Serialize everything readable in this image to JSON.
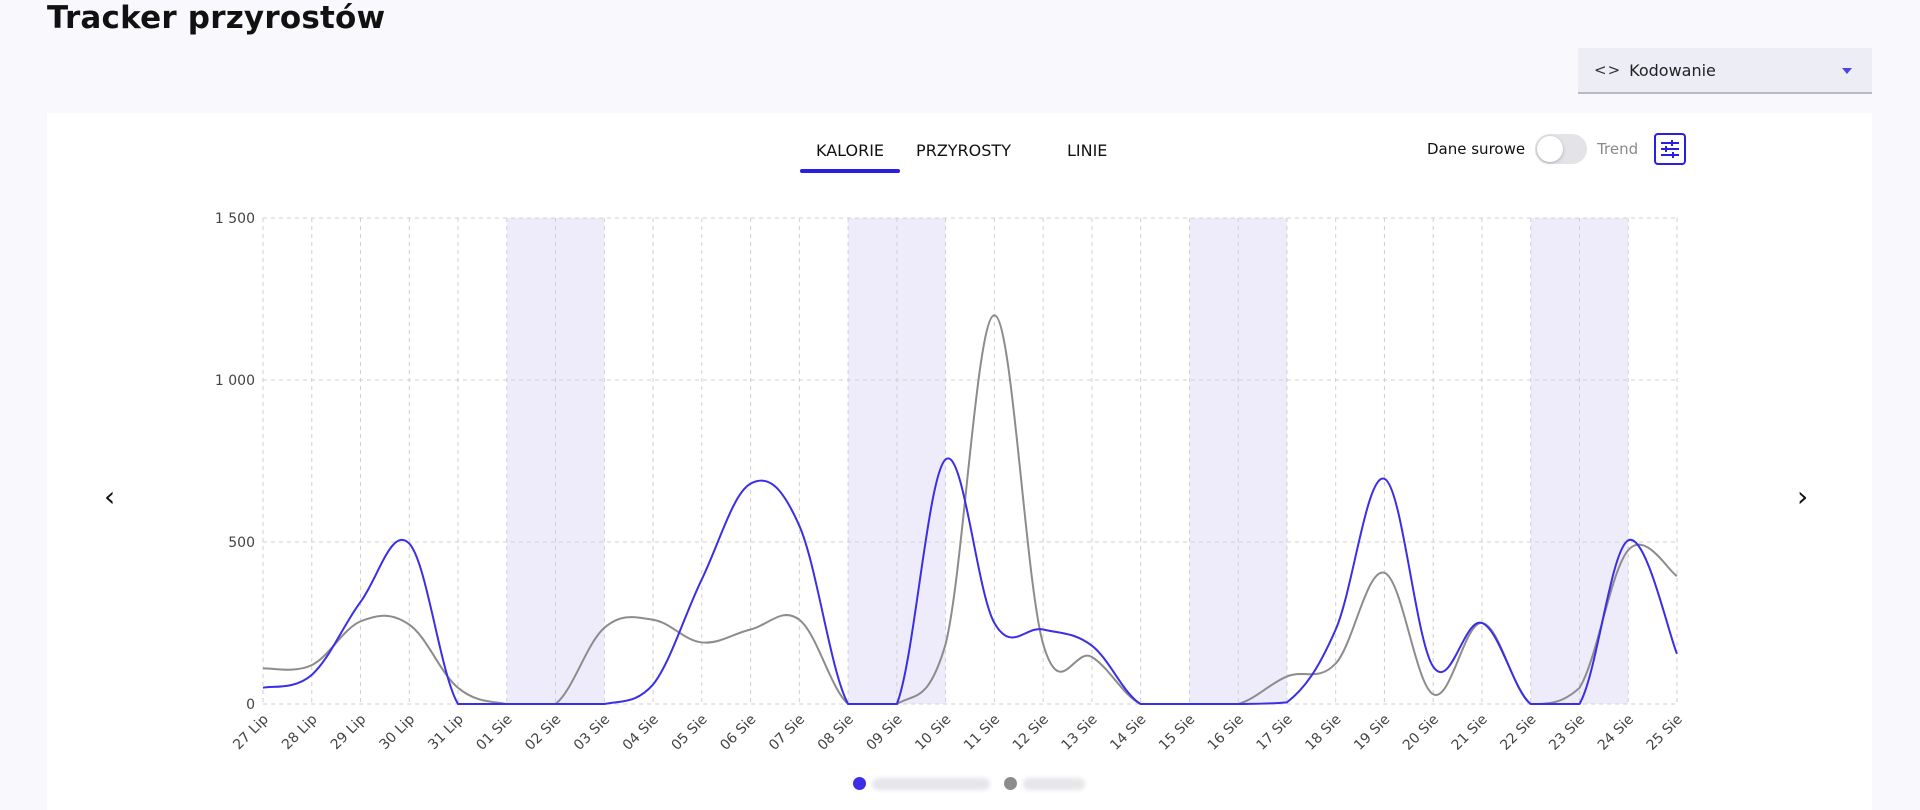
{
  "header": {
    "title": "Tracker przyrostów"
  },
  "dropdown": {
    "icon": "code-icon",
    "label": "Kodowanie"
  },
  "tabs": [
    {
      "label": "KALORIE",
      "active": true
    },
    {
      "label": "PRZYROSTY",
      "active": false
    },
    {
      "label": "LINIE",
      "active": false
    }
  ],
  "toggle": {
    "left_label": "Dane surowe",
    "right_label": "Trend",
    "state": "off"
  },
  "colors": {
    "series1": "#3a2ee6",
    "series2": "#8c8c8c",
    "weekend": "#eeecfb",
    "accent": "#2a1fe0"
  },
  "chart_data": {
    "type": "line",
    "categories": [
      "27 Lip",
      "28 Lip",
      "29 Lip",
      "30 Lip",
      "31 Lip",
      "01 Sie",
      "02 Sie",
      "03 Sie",
      "04 Sie",
      "05 Sie",
      "06 Sie",
      "07 Sie",
      "08 Sie",
      "09 Sie",
      "10 Sie",
      "11 Sie",
      "12 Sie",
      "13 Sie",
      "14 Sie",
      "15 Sie",
      "16 Sie",
      "17 Sie",
      "18 Sie",
      "19 Sie",
      "20 Sie",
      "21 Sie",
      "22 Sie",
      "23 Sie",
      "24 Sie",
      "25 Sie"
    ],
    "y_ticks": [
      "0",
      "500",
      "1 000",
      "1 500"
    ],
    "ylim": [
      0,
      1500
    ],
    "grid": true,
    "weekend_bands": [
      [
        "01 Sie",
        "03 Sie"
      ],
      [
        "08 Sie",
        "10 Sie"
      ],
      [
        "15 Sie",
        "17 Sie"
      ],
      [
        "22 Sie",
        "24 Sie"
      ]
    ],
    "series": [
      {
        "values": [
          50,
          90,
          315,
          495,
          0,
          0,
          0,
          0,
          60,
          385,
          680,
          550,
          0,
          0,
          755,
          250,
          230,
          180,
          0,
          0,
          0,
          5,
          230,
          695,
          115,
          250,
          0,
          0,
          505,
          155
        ]
      },
      {
        "values": [
          110,
          120,
          255,
          245,
          50,
          0,
          0,
          235,
          260,
          190,
          230,
          260,
          0,
          0,
          185,
          1200,
          185,
          145,
          0,
          0,
          0,
          85,
          125,
          405,
          30,
          250,
          0,
          50,
          475,
          395
        ]
      }
    ]
  }
}
